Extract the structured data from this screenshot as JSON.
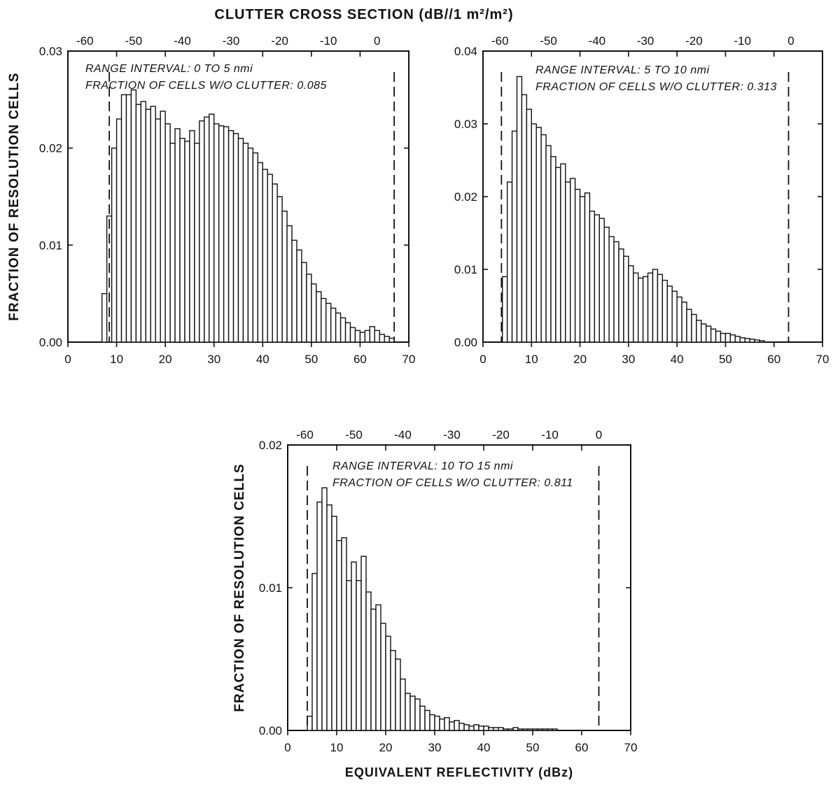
{
  "figure": {
    "top_title": "CLUTTER CROSS SECTION (dB//1 m²/m²)",
    "bottom_xlabel": "EQUIVALENT REFLECTIVITY (dBz)",
    "ylabel": "FRACTION OF RESOLUTION CELLS"
  },
  "chart_data": [
    {
      "type": "bar",
      "x_unit": "dBz",
      "bin_width": 1,
      "xlim": [
        0,
        70
      ],
      "ylim": [
        0,
        0.03
      ],
      "yticks": [
        0,
        0.01,
        0.02,
        0.03
      ],
      "ytick_labels": [
        "0.00",
        "0.01",
        "0.02",
        "0.03"
      ],
      "xticks": [
        0,
        10,
        20,
        30,
        40,
        50,
        60,
        70
      ],
      "top_axis_labels": [
        "-60",
        "-50",
        "-40",
        "-30",
        "-20",
        "-10",
        "0"
      ],
      "annotation_line1": "RANGE INTERVAL: 0 TO 5 nmi",
      "annotation_line2": "FRACTION OF CELLS W/O CLUTTER: 0.085",
      "dashed_lines_x": [
        8.5,
        67
      ],
      "x": [
        7,
        8,
        9,
        10,
        11,
        12,
        13,
        14,
        15,
        16,
        17,
        18,
        19,
        20,
        21,
        22,
        23,
        24,
        25,
        26,
        27,
        28,
        29,
        30,
        31,
        32,
        33,
        34,
        35,
        36,
        37,
        38,
        39,
        40,
        41,
        42,
        43,
        44,
        45,
        46,
        47,
        48,
        49,
        50,
        51,
        52,
        53,
        54,
        55,
        56,
        57,
        58,
        59,
        60,
        61,
        62,
        63,
        64,
        65,
        66
      ],
      "values": [
        0.005,
        0.013,
        0.02,
        0.023,
        0.0255,
        0.0255,
        0.026,
        0.0245,
        0.0248,
        0.024,
        0.0243,
        0.023,
        0.0238,
        0.0225,
        0.0205,
        0.022,
        0.021,
        0.0207,
        0.0218,
        0.0205,
        0.0228,
        0.0232,
        0.0235,
        0.0225,
        0.0223,
        0.0222,
        0.0218,
        0.0215,
        0.021,
        0.0205,
        0.02,
        0.0195,
        0.0185,
        0.0178,
        0.0173,
        0.0163,
        0.015,
        0.0135,
        0.012,
        0.0105,
        0.0095,
        0.0082,
        0.007,
        0.006,
        0.0052,
        0.0045,
        0.004,
        0.0035,
        0.003,
        0.0025,
        0.002,
        0.0015,
        0.0012,
        0.001,
        0.0012,
        0.0016,
        0.0012,
        0.0008,
        0.0006,
        0.0004
      ]
    },
    {
      "type": "bar",
      "x_unit": "dBz",
      "bin_width": 1,
      "xlim": [
        0,
        70
      ],
      "ylim": [
        0,
        0.04
      ],
      "yticks": [
        0,
        0.01,
        0.02,
        0.03,
        0.04
      ],
      "ytick_labels": [
        "0.00",
        "0.01",
        "0.02",
        "0.03",
        "0.04"
      ],
      "xticks": [
        0,
        10,
        20,
        30,
        40,
        50,
        60,
        70
      ],
      "top_axis_labels": [
        "-60",
        "-50",
        "-40",
        "-30",
        "-20",
        "-10",
        "0"
      ],
      "annotation_line1": "RANGE INTERVAL: 5 TO 10 nmi",
      "annotation_line2": "FRACTION OF CELLS W/O CLUTTER: 0.313",
      "dashed_lines_x": [
        3.8,
        63
      ],
      "x": [
        4,
        5,
        6,
        7,
        8,
        9,
        10,
        11,
        12,
        13,
        14,
        15,
        16,
        17,
        18,
        19,
        20,
        21,
        22,
        23,
        24,
        25,
        26,
        27,
        28,
        29,
        30,
        31,
        32,
        33,
        34,
        35,
        36,
        37,
        38,
        39,
        40,
        41,
        42,
        43,
        44,
        45,
        46,
        47,
        48,
        49,
        50,
        51,
        52,
        53,
        54,
        55,
        56,
        57
      ],
      "values": [
        0.009,
        0.022,
        0.029,
        0.0365,
        0.034,
        0.032,
        0.03,
        0.0295,
        0.0285,
        0.027,
        0.0255,
        0.024,
        0.0245,
        0.022,
        0.0225,
        0.021,
        0.02,
        0.0205,
        0.018,
        0.0175,
        0.017,
        0.0158,
        0.0145,
        0.0138,
        0.0128,
        0.0118,
        0.0105,
        0.0095,
        0.0088,
        0.009,
        0.0095,
        0.01,
        0.0093,
        0.0085,
        0.0077,
        0.007,
        0.0062,
        0.0055,
        0.0045,
        0.0038,
        0.003,
        0.0025,
        0.0022,
        0.0018,
        0.0015,
        0.0012,
        0.0012,
        0.001,
        0.0008,
        0.0006,
        0.0005,
        0.0004,
        0.0003,
        0.0002
      ]
    },
    {
      "type": "bar",
      "x_unit": "dBz",
      "bin_width": 1,
      "xlim": [
        0,
        70
      ],
      "ylim": [
        0,
        0.02
      ],
      "yticks": [
        0,
        0.01,
        0.02
      ],
      "ytick_labels": [
        "0.00",
        "0.01",
        "0.02"
      ],
      "xticks": [
        0,
        10,
        20,
        30,
        40,
        50,
        60,
        70
      ],
      "xtick_labels": [
        "0",
        "10",
        "20",
        "30",
        "40",
        "50",
        "60",
        "70"
      ],
      "top_axis_labels": [
        "-60",
        "-50",
        "-40",
        "-30",
        "-20",
        "-10",
        "0"
      ],
      "annotation_line1": "RANGE INTERVAL: 10 TO 15 nmi",
      "annotation_line2": "FRACTION OF CELLS W/O CLUTTER: 0.811",
      "dashed_lines_x": [
        4,
        63.5
      ],
      "x": [
        4,
        5,
        6,
        7,
        8,
        9,
        10,
        11,
        12,
        13,
        14,
        15,
        16,
        17,
        18,
        19,
        20,
        21,
        22,
        23,
        24,
        25,
        26,
        27,
        28,
        29,
        30,
        31,
        32,
        33,
        34,
        35,
        36,
        37,
        38,
        39,
        40,
        41,
        42,
        43,
        44,
        45,
        46,
        47,
        48,
        49,
        50,
        51,
        52,
        53,
        54
      ],
      "values": [
        0.001,
        0.011,
        0.016,
        0.017,
        0.0158,
        0.015,
        0.0133,
        0.0135,
        0.0105,
        0.0118,
        0.0105,
        0.0122,
        0.0097,
        0.0085,
        0.0088,
        0.0075,
        0.0066,
        0.0056,
        0.005,
        0.0036,
        0.0026,
        0.0024,
        0.0022,
        0.0017,
        0.0014,
        0.0011,
        0.001,
        0.0008,
        0.0009,
        0.0006,
        0.0007,
        0.0005,
        0.0004,
        0.0003,
        0.0004,
        0.0003,
        0.0003,
        0.0002,
        0.0002,
        0.0002,
        0.0001,
        0.0001,
        0.0002,
        0.0001,
        0.0001,
        0.0001,
        0.0001,
        0.0001,
        0.0001,
        0.0001,
        0.0001
      ]
    }
  ]
}
